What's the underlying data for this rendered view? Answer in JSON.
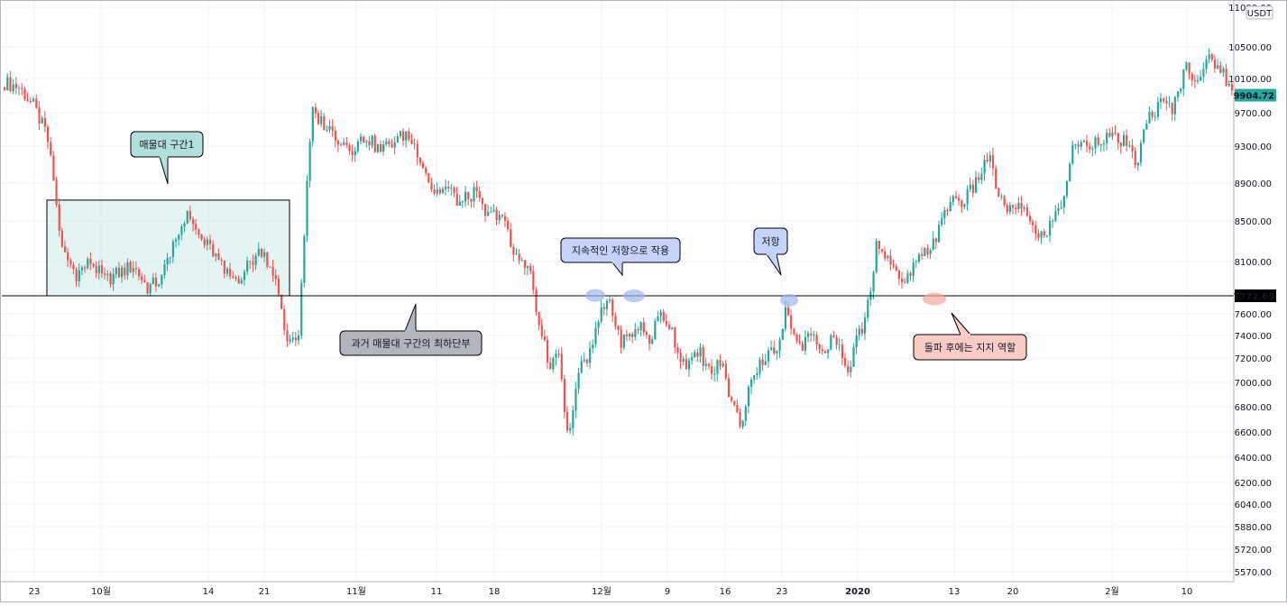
{
  "chart_data": {
    "type": "candlestick",
    "currency": "USDT",
    "ylim": [
      5500,
      11000
    ],
    "y_ticks": [
      "11000.00",
      "10500.00",
      "10100.00",
      "9700.00",
      "9300.00",
      "8900.00",
      "8500.00",
      "8100.00",
      "7600.00",
      "7400.00",
      "7200.00",
      "7000.00",
      "6800.00",
      "6600.00",
      "6400.00",
      "6200.00",
      "6040.00",
      "5880.00",
      "5720.00",
      "5570.00"
    ],
    "x_ticks": [
      "23",
      "10월",
      "14",
      "21",
      "11월",
      "11",
      "18",
      "12월",
      "9",
      "16",
      "23",
      "2020",
      "13",
      "20",
      "2월",
      "10"
    ],
    "last_price": "9904.72",
    "horizontal_line_price": "7772.63",
    "colors": {
      "up": "#26a69a",
      "down": "#ef5350",
      "line": "#000000"
    },
    "range_box": {
      "price_low": 7772.63,
      "price_high": 8720
    },
    "highlight_points": [
      7776,
      7772,
      7730,
      7742
    ],
    "segments": [
      [
        10050,
        10000,
        9780,
        9400
      ],
      [
        9400,
        8200,
        7980,
        8100,
        7920,
        7990,
        8060,
        7850,
        7930,
        8390
      ],
      [
        8390,
        8550,
        8320,
        8200,
        7980,
        7930,
        8080,
        8220,
        7990,
        7350,
        7430
      ],
      [
        7430,
        9700,
        9550,
        9380,
        9280,
        9420,
        9250,
        9350,
        9450,
        9200,
        8800,
        8850,
        8680,
        8800,
        8540,
        8600,
        8140,
        8100
      ],
      [
        8100,
        7600,
        7150,
        7250,
        6550,
        7100,
        7180,
        7550,
        7760,
        7350,
        7380,
        7500,
        7350,
        7600,
        7500,
        7200,
        7150,
        7250,
        7050,
        7180,
        6850,
        6650,
        7080
      ],
      [
        7080,
        7150,
        7250,
        7200,
        7650,
        7350,
        7320,
        7400,
        7200,
        7350,
        7280,
        7050,
        7350,
        7500
      ],
      [
        7500,
        8320,
        8100,
        7850,
        8050,
        8200,
        8400,
        8750,
        8700,
        8900,
        9200,
        8700,
        8600,
        8650,
        8300,
        8450,
        8700,
        9350,
        9300,
        9400,
        9400,
        9350,
        9100,
        9650,
        9800,
        9750,
        10250,
        10100,
        10350,
        10200,
        9850
      ]
    ],
    "callouts": [
      {
        "id": "range1",
        "text": "매물대 구간1"
      },
      {
        "id": "range_bottom",
        "text": "과거 매물대 구간의 최하단부"
      },
      {
        "id": "resist_continuous",
        "text": "지속적인 저항으로 작용"
      },
      {
        "id": "resist",
        "text": "저항"
      },
      {
        "id": "support",
        "text": "돌파 후에는 지지 역할"
      }
    ]
  }
}
